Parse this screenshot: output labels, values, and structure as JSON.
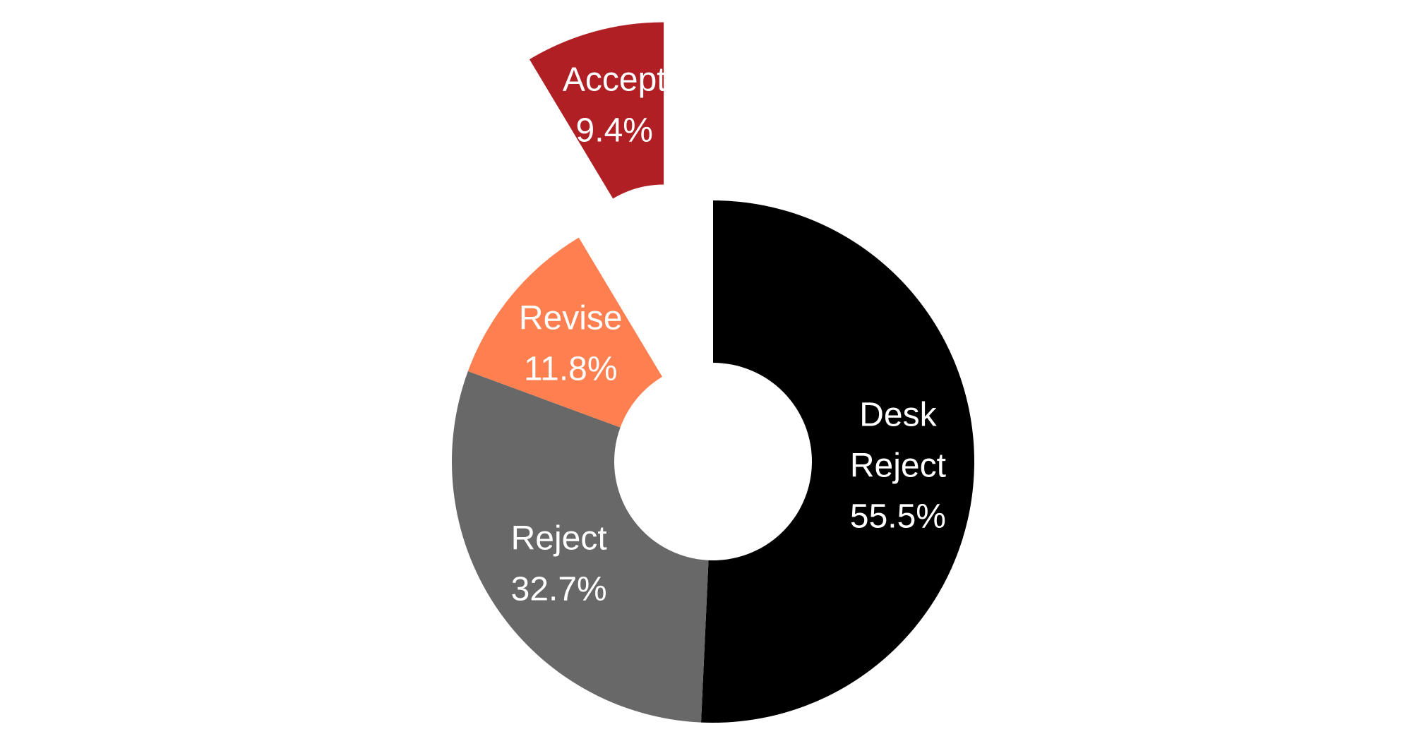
{
  "chart_data": {
    "type": "pie",
    "variant": "donut",
    "title": "",
    "slices": [
      {
        "label": "Desk Reject",
        "label_lines": [
          "Desk",
          "Reject"
        ],
        "value": 55.5,
        "value_label": "55.5%",
        "color": "#000000",
        "exploded": false
      },
      {
        "label": "Reject",
        "label_lines": [
          "Reject"
        ],
        "value": 32.7,
        "value_label": "32.7%",
        "color": "#686868",
        "exploded": false
      },
      {
        "label": "Revise",
        "label_lines": [
          "Revise"
        ],
        "value": 11.8,
        "value_label": "11.8%",
        "color": "#fe7f50",
        "exploded": false
      },
      {
        "label": "Accept",
        "label_lines": [
          "Accept"
        ],
        "value": 9.4,
        "value_label": "9.4%",
        "color": "#b01f24",
        "exploded": true
      }
    ],
    "legend": "none"
  }
}
